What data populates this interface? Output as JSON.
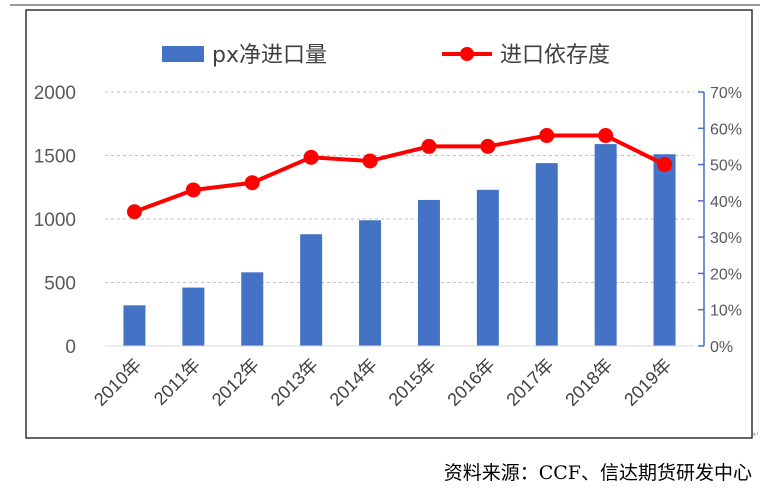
{
  "chart_data": {
    "type": "bar+line",
    "categories": [
      "2010年",
      "2011年",
      "2012年",
      "2013年",
      "2014年",
      "2015年",
      "2016年",
      "2017年",
      "2018年",
      "2019年"
    ],
    "series": [
      {
        "name": "px净进口量",
        "type": "bar",
        "axis": "left",
        "values": [
          320,
          460,
          580,
          880,
          990,
          1150,
          1230,
          1440,
          1590,
          1510
        ],
        "color": "#4472c4"
      },
      {
        "name": "进口依存度",
        "type": "line",
        "axis": "right",
        "values": [
          37,
          43,
          45,
          52,
          51,
          55,
          55,
          58,
          58,
          50
        ],
        "color": "#ff0000"
      }
    ],
    "left_axis": {
      "ylim": [
        0,
        2000
      ],
      "ticks": [
        "0",
        "500",
        "1000",
        "1500",
        "2000"
      ]
    },
    "right_axis": {
      "ylim": [
        0,
        70
      ],
      "ticks": [
        "0%",
        "10%",
        "20%",
        "30%",
        "40%",
        "50%",
        "60%",
        "70%"
      ]
    },
    "grid": true,
    "legend_position": "top"
  },
  "source": "资料来源：CCF、信达期货研发中心"
}
